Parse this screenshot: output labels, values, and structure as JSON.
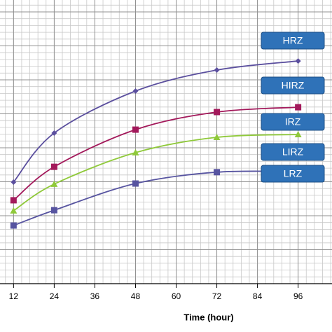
{
  "chart_data": {
    "type": "line",
    "x_label": "Time (hour)",
    "x": [
      12,
      24,
      48,
      72,
      96
    ],
    "series": [
      {
        "color": "#5b4f9e",
        "marker": "diamond",
        "values": [
          35.8,
          53.1,
          67.9,
          75.3,
          78.5
        ]
      },
      {
        "color": "#a3195b",
        "marker": "square",
        "values": [
          29.4,
          41.2,
          54.3,
          60.5,
          62.2
        ]
      },
      {
        "color": "#8fc93a",
        "marker": "triangle",
        "values": [
          25.7,
          35.1,
          46.2,
          51.6,
          52.6
        ]
      },
      {
        "color": "#5754a0",
        "marker": "square",
        "values": [
          20.5,
          25.9,
          35.3,
          39.3,
          39.5
        ]
      }
    ],
    "annotations": [
      "HRZ",
      "HIRZ",
      "IRZ",
      "LIRZ",
      "LRZ"
    ],
    "xlim": [
      8,
      106
    ],
    "xticks": [
      12,
      24,
      36,
      48,
      60,
      72,
      84,
      96
    ],
    "ylim": [
      0,
      100
    ],
    "grid": true
  }
}
